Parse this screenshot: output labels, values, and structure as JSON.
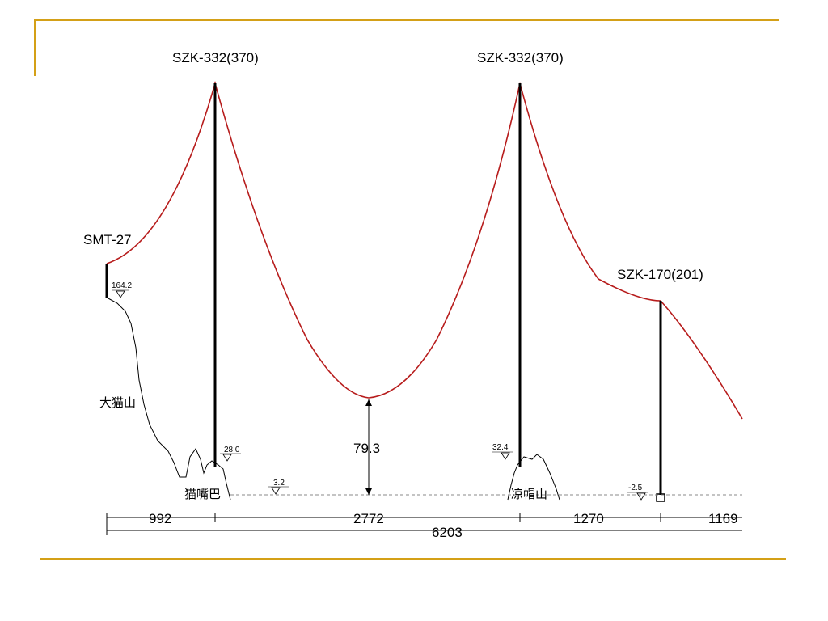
{
  "towers": {
    "left_label": "SZK-332(370)",
    "right_label": "SZK-332(370)",
    "end_label": "SZK-170(201)",
    "start_label": "SMT-27"
  },
  "places": {
    "left_mountain": "大猫山",
    "left_valley": "猫嘴巴",
    "right_mountain": "凉帽山"
  },
  "elevations": {
    "start": "164.2",
    "left_tower_base": "28.0",
    "valley_low": "3.2",
    "right_tower_base": "32.4",
    "end_base": "-2.5"
  },
  "sag": "79.3",
  "spans": {
    "s1": "992",
    "s2": "2772",
    "s3": "1270",
    "s4": "1169",
    "total": "6203"
  },
  "colors": {
    "cable": "#b71c1c",
    "frame": "#d4a017"
  }
}
